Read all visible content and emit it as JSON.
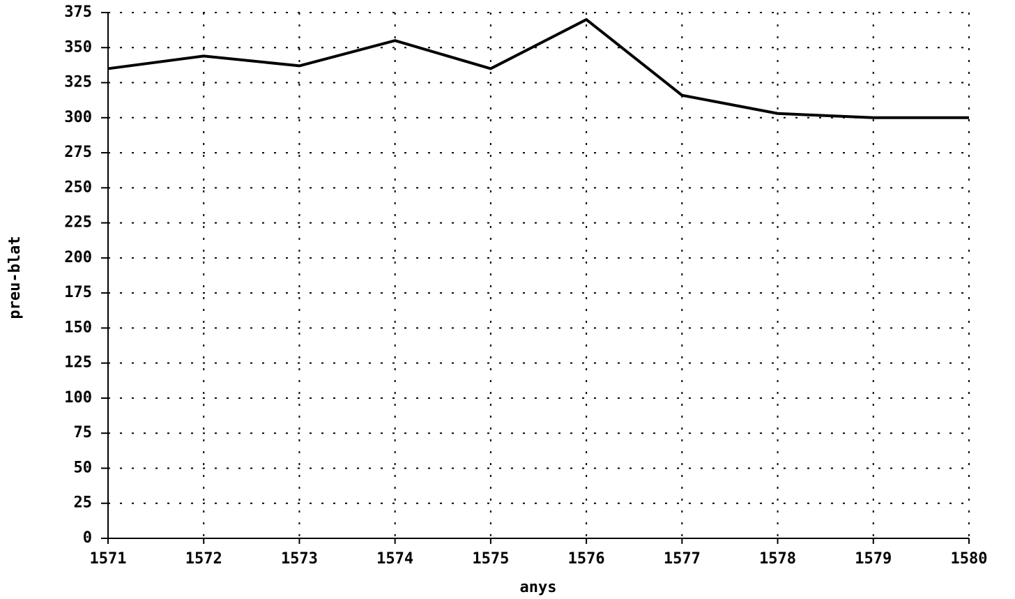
{
  "chart_data": {
    "type": "line",
    "x_label": "anys",
    "y_label": "preu-blat",
    "x": [
      1571,
      1572,
      1573,
      1574,
      1575,
      1576,
      1577,
      1578,
      1579,
      1580
    ],
    "series": [
      {
        "color": "#000000",
        "values": [
          335,
          344,
          337,
          355,
          335,
          370,
          316,
          303,
          300,
          300
        ]
      }
    ],
    "xlim": [
      1571,
      1580
    ],
    "xticks": [
      1571,
      1572,
      1573,
      1574,
      1575,
      1576,
      1577,
      1578,
      1579,
      1580
    ],
    "ylim": [
      0,
      375
    ],
    "yticks": [
      0,
      25,
      50,
      75,
      100,
      125,
      150,
      175,
      200,
      225,
      250,
      275,
      300,
      325,
      350,
      375
    ],
    "grid": true
  }
}
